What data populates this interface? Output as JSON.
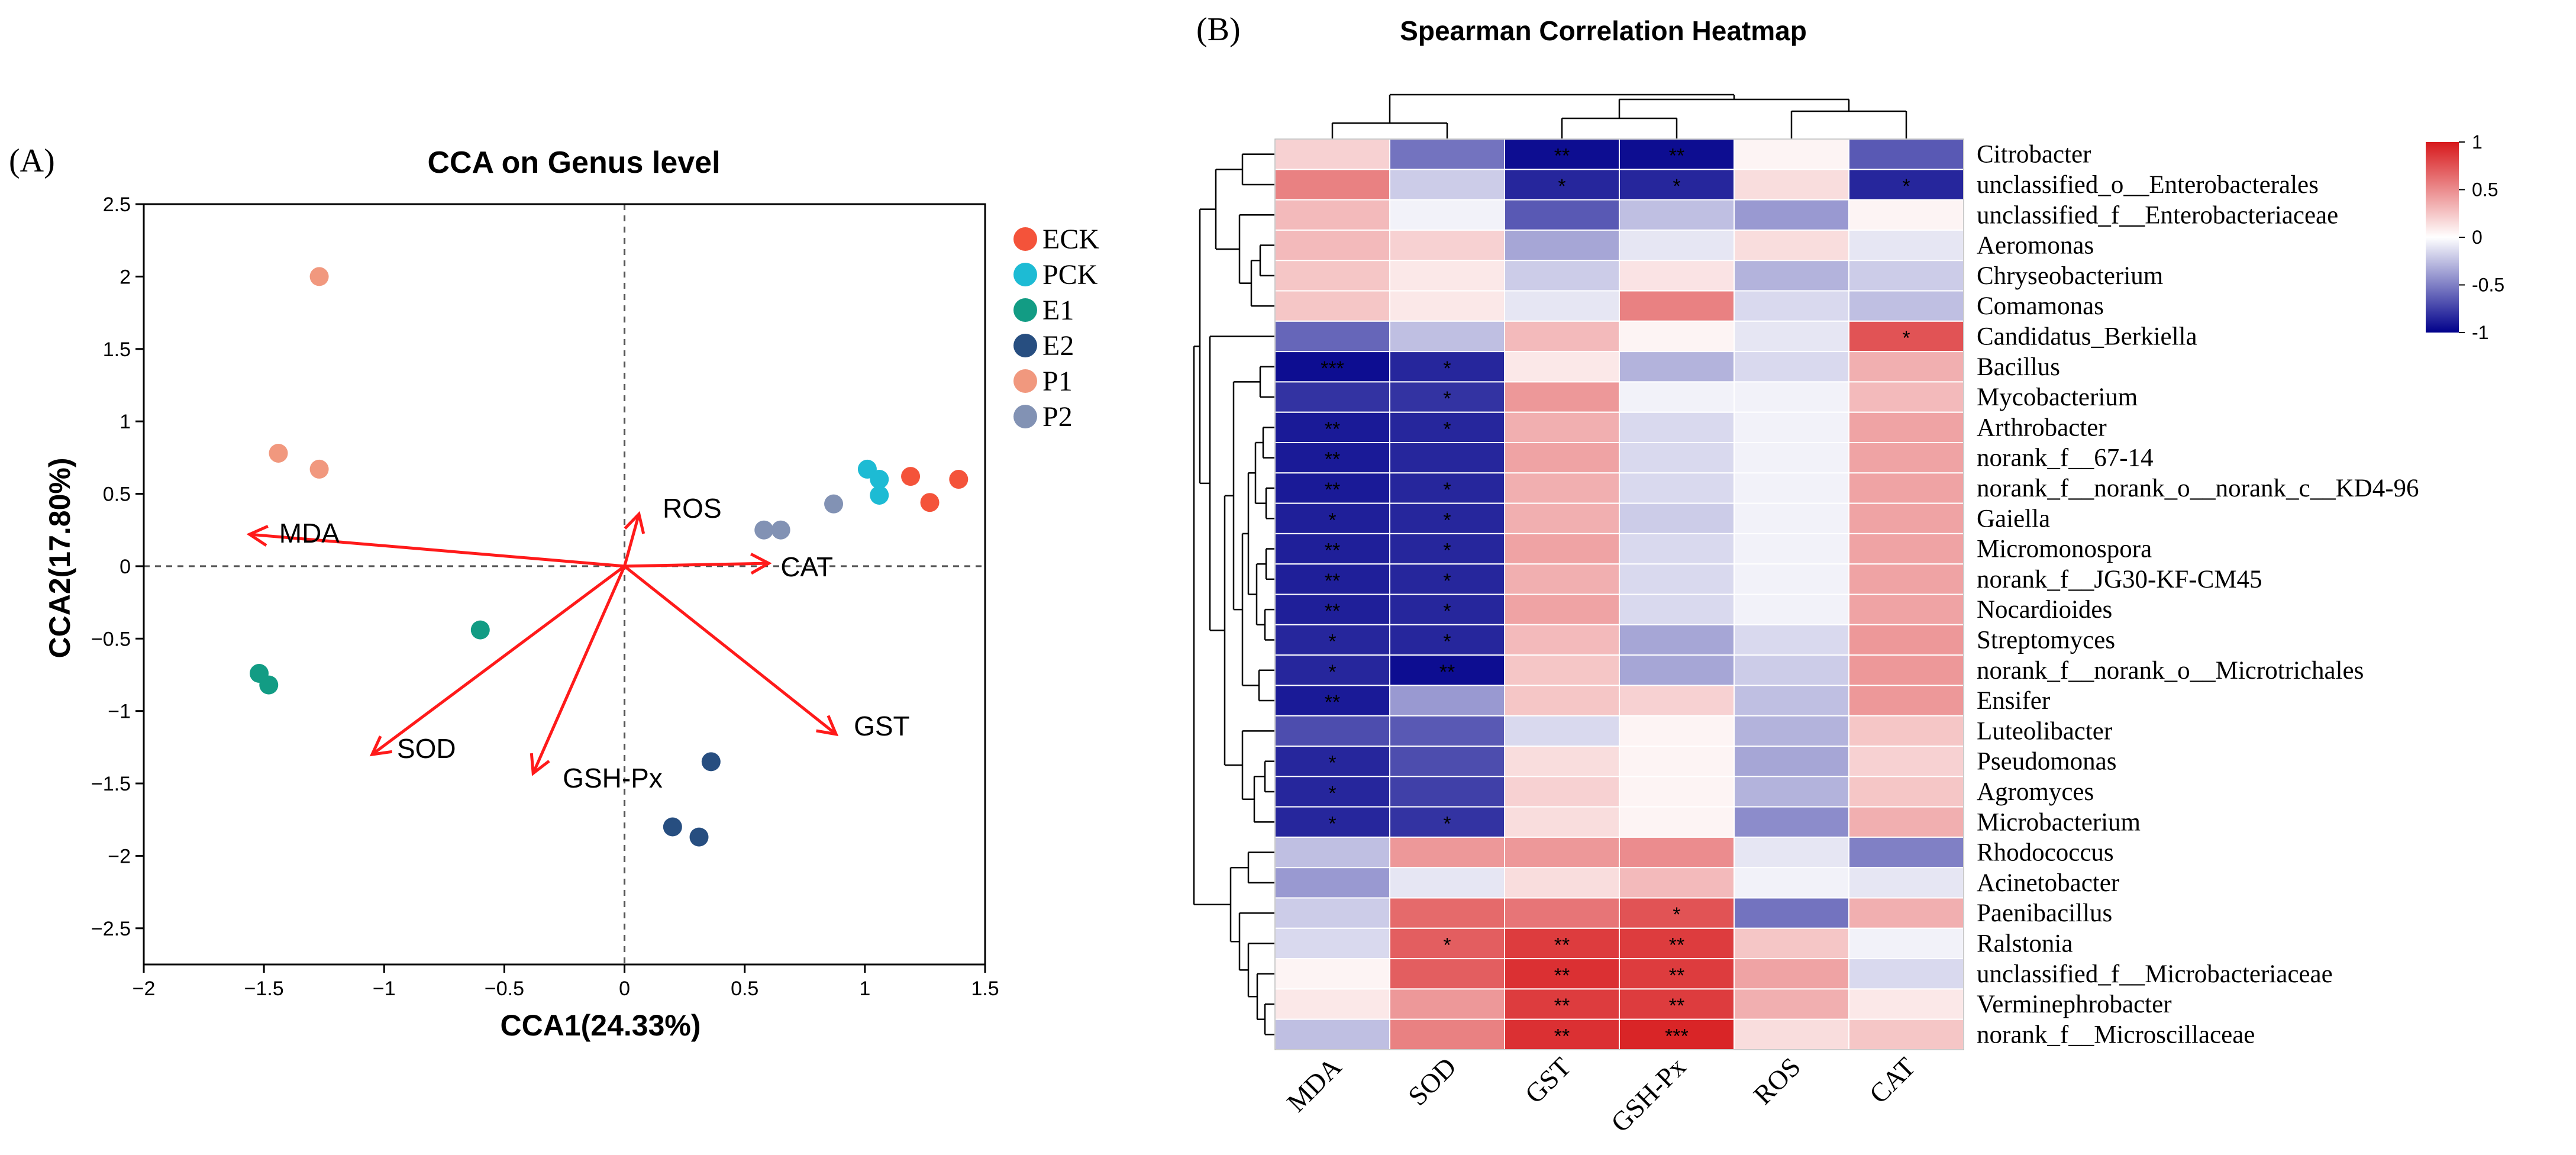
{
  "chart_data": [
    {
      "type": "scatter",
      "panel_label": "(A)",
      "title": "CCA on Genus level",
      "xlabel": "CCA1(24.33%)",
      "ylabel": "CCA2(17.80%)",
      "xlim": [
        -2,
        1.5
      ],
      "ylim": [
        -2.75,
        2.5
      ],
      "xticks": [
        -2,
        -1.5,
        -1,
        -0.5,
        0,
        0.5,
        1,
        1.5
      ],
      "xtick_labels": [
        "−2",
        "−1.5",
        "−1",
        "−0.5",
        "0",
        "0.5",
        "1",
        "1.5"
      ],
      "yticks": [
        2.5,
        2,
        1.5,
        1,
        0.5,
        0,
        -0.5,
        -1,
        -1.5,
        -2,
        -2.5
      ],
      "ytick_labels": [
        "2.5",
        "2",
        "1.5",
        "1",
        "0.5",
        "0",
        "−0.5",
        "−1",
        "−1.5",
        "−2",
        "−2.5"
      ],
      "legend_position": "right",
      "series": [
        {
          "name": "ECK",
          "color": "#F4533A",
          "points": [
            [
              1.19,
              0.62
            ],
            [
              1.27,
              0.44
            ],
            [
              1.39,
              0.6
            ]
          ]
        },
        {
          "name": "PCK",
          "color": "#1DBBD4",
          "points": [
            [
              1.01,
              0.67
            ],
            [
              1.06,
              0.6
            ],
            [
              1.06,
              0.49
            ]
          ]
        },
        {
          "name": "E1",
          "color": "#129C84",
          "points": [
            [
              -0.6,
              -0.44
            ],
            [
              -1.52,
              -0.74
            ],
            [
              -1.48,
              -0.82
            ]
          ]
        },
        {
          "name": "E2",
          "color": "#274E80",
          "points": [
            [
              0.36,
              -1.35
            ],
            [
              0.2,
              -1.8
            ],
            [
              0.31,
              -1.87
            ]
          ]
        },
        {
          "name": "P1",
          "color": "#F1987E",
          "points": [
            [
              -1.27,
              2.0
            ],
            [
              -1.44,
              0.78
            ],
            [
              -1.27,
              0.67
            ]
          ]
        },
        {
          "name": "P2",
          "color": "#8292B4",
          "points": [
            [
              0.58,
              0.25
            ],
            [
              0.65,
              0.25
            ],
            [
              0.87,
              0.43
            ]
          ]
        }
      ],
      "arrows": [
        {
          "name": "MDA",
          "x": -1.56,
          "y": 0.22
        },
        {
          "name": "ROS",
          "x": 0.06,
          "y": 0.36
        },
        {
          "name": "CAT",
          "x": 0.6,
          "y": 0.02
        },
        {
          "name": "GST",
          "x": 0.88,
          "y": -1.16
        },
        {
          "name": "SOD",
          "x": -1.05,
          "y": -1.3
        },
        {
          "name": "GSH-Px",
          "x": -0.38,
          "y": -1.43
        }
      ],
      "arrow_color": "#FF1A1A"
    },
    {
      "type": "heatmap",
      "panel_label": "(B)",
      "title": "Spearman Correlation Heatmap",
      "columns": [
        "MDA",
        "SOD",
        "GST",
        "GSH-Px",
        "ROS",
        "CAT"
      ],
      "rows": [
        "Citrobacter",
        "unclassified_o__Enterobacterales",
        "unclassified_f__Enterobacteriaceae",
        "Aeromonas",
        "Chryseobacterium",
        "Comamonas",
        "Candidatus_Berkiella",
        "Bacillus",
        "Mycobacterium",
        "Arthrobacter",
        "norank_f__67-14",
        "norank_f__norank_o__norank_c__KD4-96",
        "Gaiella",
        "Micromonospora",
        "norank_f__JG30-KF-CM45",
        "Nocardioides",
        "Streptomyces",
        "norank_f__norank_o__Microtrichales",
        "Ensifer",
        "Luteolibacter",
        "Pseudomonas",
        "Agromyces",
        "Microbacterium",
        "Rhodococcus",
        "Acinetobacter",
        "Paenibacillus",
        "Ralstonia",
        "unclassified_f__Microbacteriaceae",
        "Verminephrobacter",
        "norank_f__Microscillaceae"
      ],
      "values": [
        [
          0.2,
          -0.55,
          -0.95,
          -0.95,
          0.05,
          -0.65
        ],
        [
          0.55,
          -0.2,
          -0.85,
          -0.85,
          0.15,
          -0.85
        ],
        [
          0.3,
          -0.05,
          -0.65,
          -0.25,
          -0.4,
          0.05
        ],
        [
          0.3,
          0.2,
          -0.35,
          -0.1,
          0.15,
          -0.1
        ],
        [
          0.25,
          0.1,
          -0.2,
          0.12,
          -0.3,
          -0.2
        ],
        [
          0.25,
          0.1,
          -0.1,
          0.55,
          -0.15,
          -0.25
        ],
        [
          -0.6,
          -0.25,
          0.3,
          0.05,
          -0.1,
          0.75
        ],
        [
          -0.95,
          -0.85,
          0.1,
          -0.3,
          -0.15,
          0.35
        ],
        [
          -0.8,
          -0.8,
          0.45,
          -0.05,
          -0.05,
          0.3
        ],
        [
          -0.9,
          -0.85,
          0.35,
          -0.15,
          -0.05,
          0.4
        ],
        [
          -0.9,
          -0.85,
          0.4,
          -0.15,
          -0.05,
          0.4
        ],
        [
          -0.9,
          -0.85,
          0.35,
          -0.15,
          -0.05,
          0.4
        ],
        [
          -0.88,
          -0.85,
          0.35,
          -0.2,
          -0.05,
          0.4
        ],
        [
          -0.88,
          -0.85,
          0.4,
          -0.15,
          -0.05,
          0.4
        ],
        [
          -0.88,
          -0.85,
          0.35,
          -0.15,
          -0.05,
          0.4
        ],
        [
          -0.88,
          -0.85,
          0.4,
          -0.15,
          -0.05,
          0.4
        ],
        [
          -0.85,
          -0.85,
          0.3,
          -0.35,
          -0.15,
          0.45
        ],
        [
          -0.85,
          -0.95,
          0.25,
          -0.35,
          -0.2,
          0.45
        ],
        [
          -0.9,
          -0.4,
          0.25,
          0.2,
          -0.25,
          0.45
        ],
        [
          -0.7,
          -0.65,
          -0.15,
          0.05,
          -0.3,
          0.25
        ],
        [
          -0.85,
          -0.7,
          0.15,
          0.05,
          -0.35,
          0.2
        ],
        [
          -0.85,
          -0.75,
          0.2,
          0.05,
          -0.3,
          0.25
        ],
        [
          -0.85,
          -0.8,
          0.15,
          0.05,
          -0.45,
          0.35
        ],
        [
          -0.25,
          0.45,
          0.45,
          0.5,
          -0.1,
          -0.5
        ],
        [
          -0.4,
          -0.1,
          0.15,
          0.3,
          -0.05,
          -0.1
        ],
        [
          -0.2,
          0.65,
          0.6,
          0.75,
          -0.55,
          0.35
        ],
        [
          -0.15,
          0.7,
          0.85,
          0.85,
          0.25,
          -0.05
        ],
        [
          0.05,
          0.7,
          0.9,
          0.85,
          0.4,
          -0.15
        ],
        [
          0.1,
          0.45,
          0.85,
          0.85,
          0.35,
          0.1
        ],
        [
          -0.25,
          0.55,
          0.9,
          0.95,
          0.15,
          0.25
        ]
      ],
      "significance": [
        [
          "",
          "",
          "**",
          "**",
          "",
          ""
        ],
        [
          "",
          "",
          "*",
          "*",
          "",
          "*"
        ],
        [
          "",
          "",
          "",
          "",
          "",
          ""
        ],
        [
          "",
          "",
          "",
          "",
          "",
          ""
        ],
        [
          "",
          "",
          "",
          "",
          "",
          ""
        ],
        [
          "",
          "",
          "",
          "",
          "",
          ""
        ],
        [
          "",
          "",
          "",
          "",
          "",
          "*"
        ],
        [
          "***",
          "*",
          "",
          "",
          "",
          ""
        ],
        [
          "",
          "*",
          "",
          "",
          "",
          ""
        ],
        [
          "**",
          "*",
          "",
          "",
          "",
          ""
        ],
        [
          "**",
          "",
          "",
          "",
          "",
          ""
        ],
        [
          "**",
          "*",
          "",
          "",
          "",
          ""
        ],
        [
          "*",
          "*",
          "",
          "",
          "",
          ""
        ],
        [
          "**",
          "*",
          "",
          "",
          "",
          ""
        ],
        [
          "**",
          "*",
          "",
          "",
          "",
          ""
        ],
        [
          "**",
          "*",
          "",
          "",
          "",
          ""
        ],
        [
          "*",
          "*",
          "",
          "",
          "",
          ""
        ],
        [
          "*",
          "**",
          "",
          "",
          "",
          ""
        ],
        [
          "**",
          "",
          "",
          "",
          "",
          ""
        ],
        [
          "",
          "",
          "",
          "",
          "",
          ""
        ],
        [
          "*",
          "",
          "",
          "",
          "",
          ""
        ],
        [
          "*",
          "",
          "",
          "",
          "",
          ""
        ],
        [
          "*",
          "*",
          "",
          "",
          "",
          ""
        ],
        [
          "",
          "",
          "",
          "",
          "",
          ""
        ],
        [
          "",
          "",
          "",
          "",
          "",
          ""
        ],
        [
          "",
          "",
          "",
          "*",
          "",
          ""
        ],
        [
          "",
          "*",
          "**",
          "**",
          "",
          ""
        ],
        [
          "",
          "",
          "**",
          "**",
          "",
          ""
        ],
        [
          "",
          "",
          "**",
          "**",
          "",
          ""
        ],
        [
          "",
          "",
          "**",
          "***",
          "",
          ""
        ]
      ],
      "colorbar": {
        "min": -1,
        "max": 1,
        "ticks": [
          1,
          0.5,
          0,
          -0.5,
          -1
        ],
        "tick_labels": [
          "1",
          "0.5",
          "0",
          "-0.5",
          "-1"
        ],
        "colors": [
          "#00008B",
          "#FFFFFF",
          "#D7191C"
        ]
      }
    }
  ]
}
